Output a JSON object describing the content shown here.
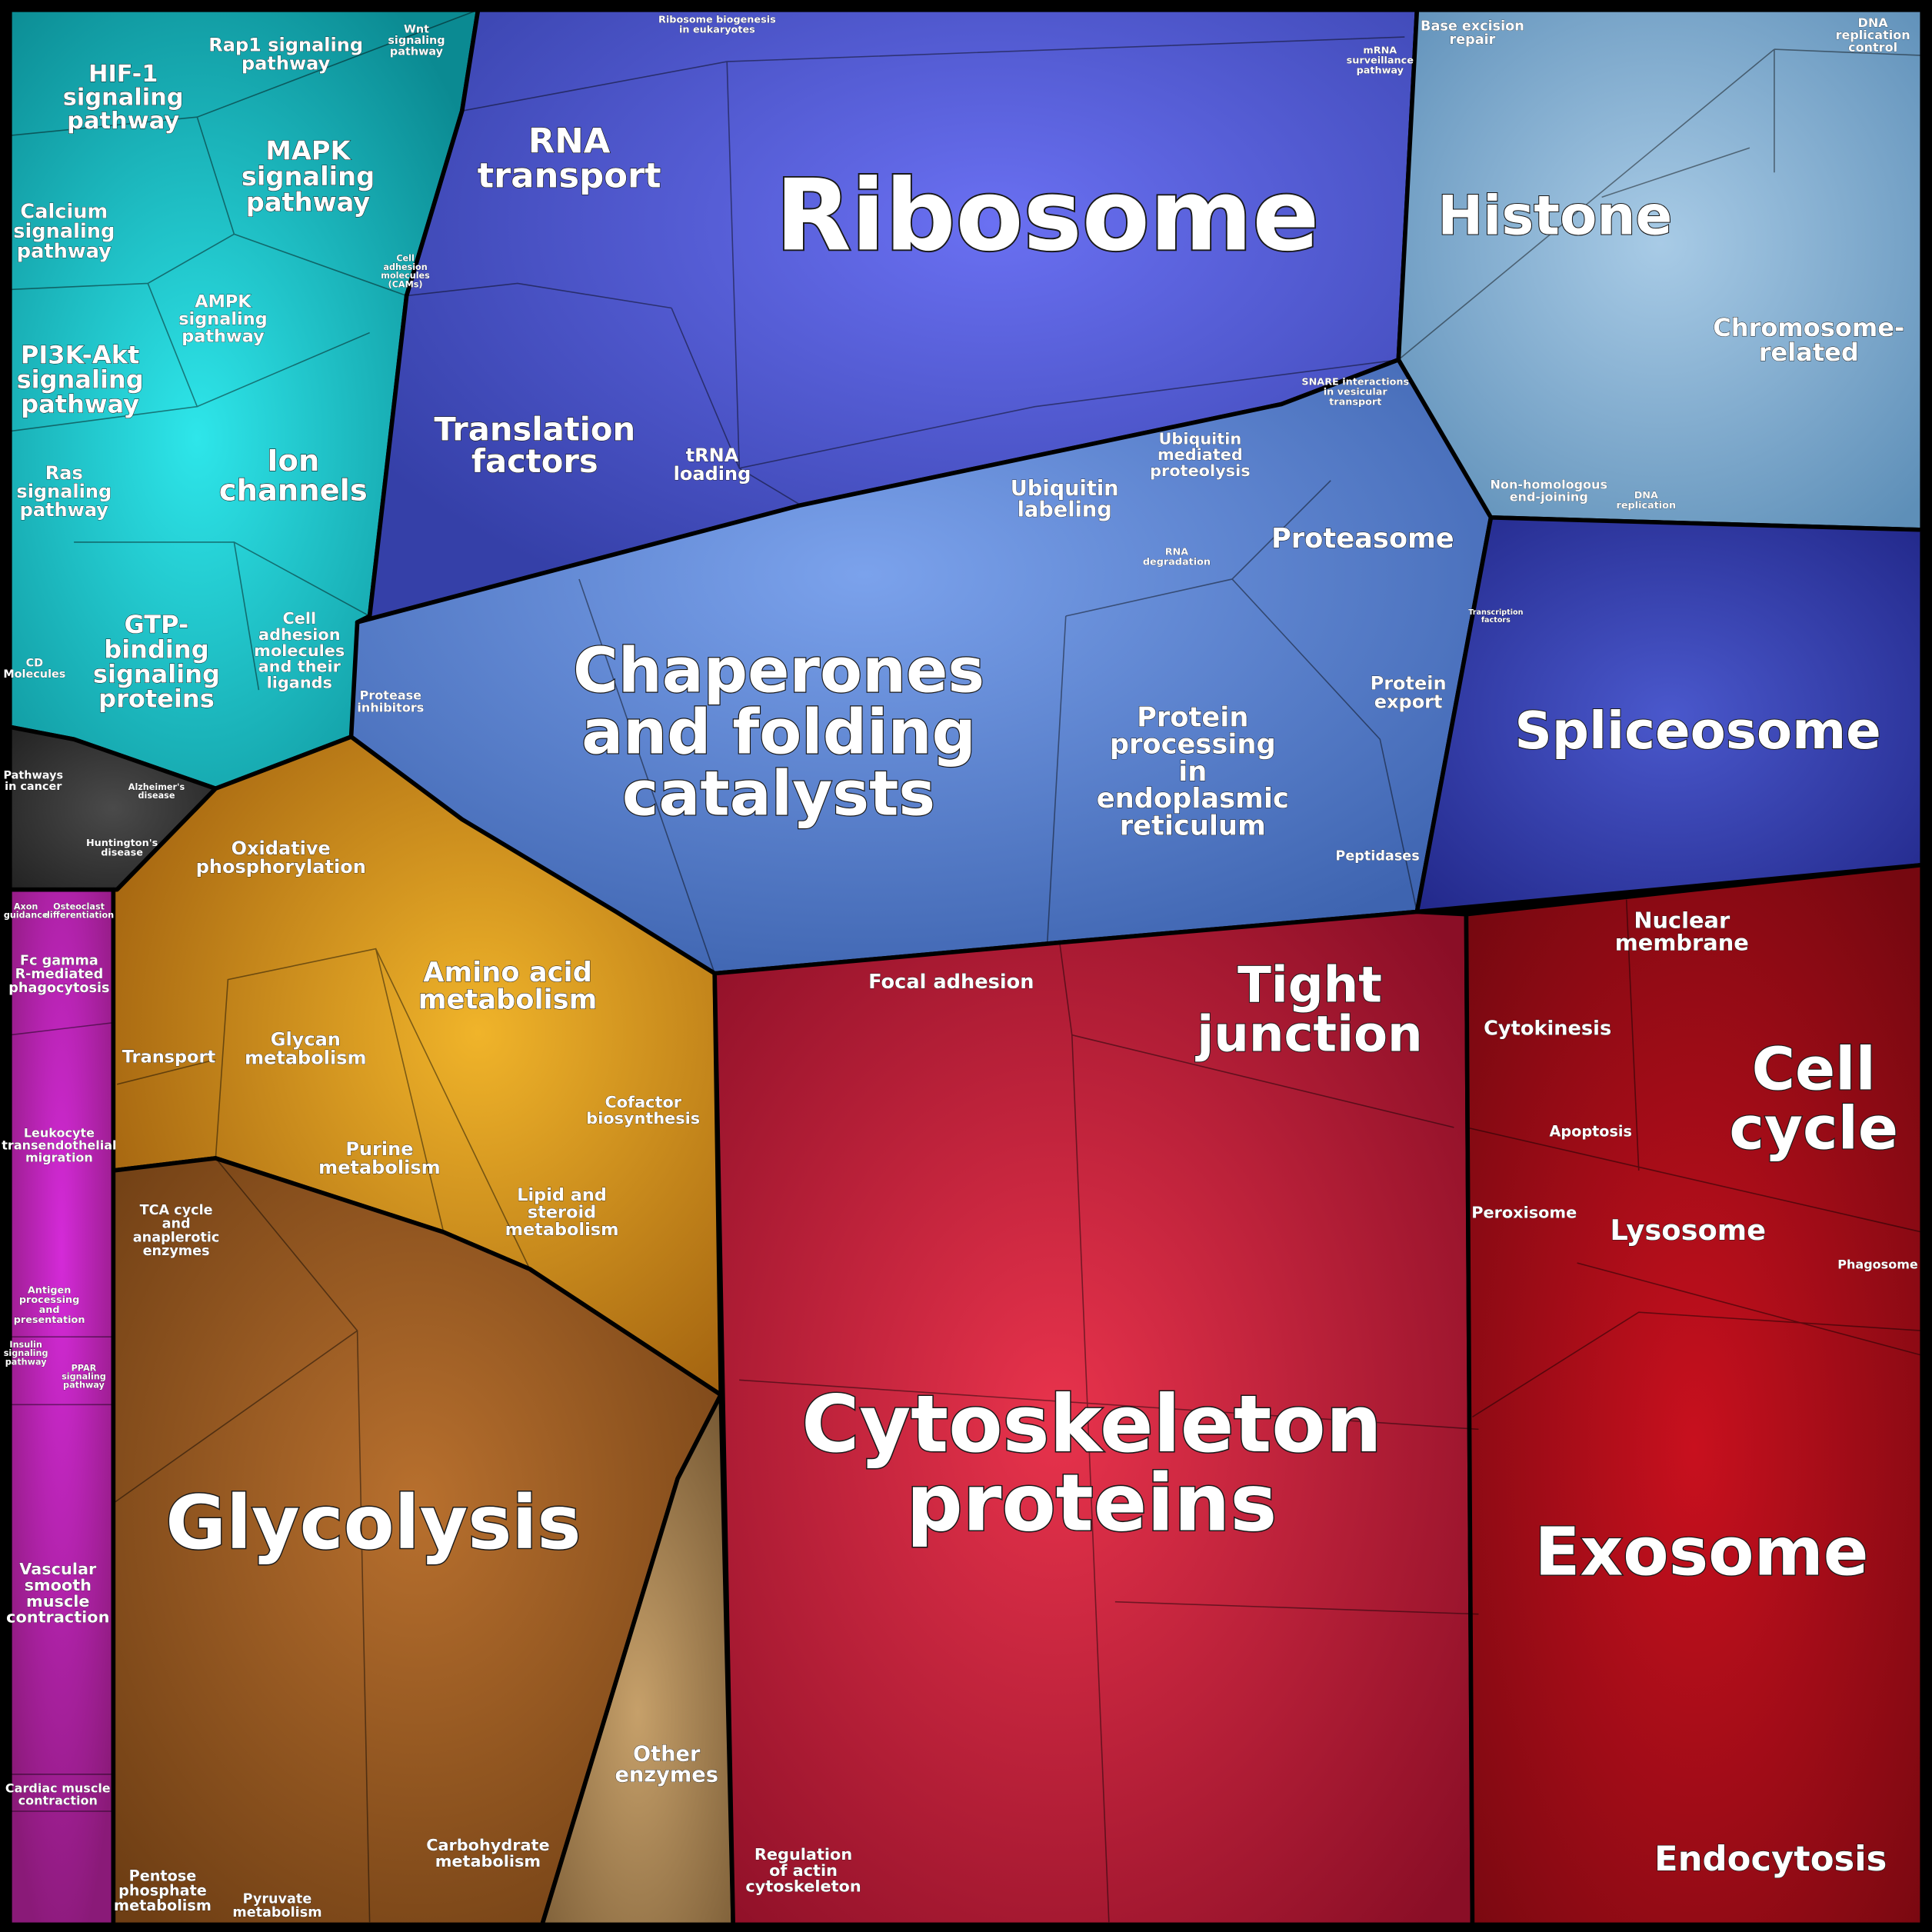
{
  "labels": [
    {
      "lines": [
        "Ribosome"
      ]
    },
    {
      "lines": [
        "Histone"
      ]
    },
    {
      "lines": [
        "Chromosome-",
        "related"
      ]
    },
    {
      "lines": [
        "RNA",
        "transport"
      ]
    },
    {
      "lines": [
        "Translation",
        "factors"
      ]
    },
    {
      "lines": [
        "tRNA",
        "loading"
      ]
    },
    {
      "lines": [
        "Chaperones",
        "and folding",
        "catalysts"
      ]
    },
    {
      "lines": [
        "Ubiquitin",
        "labeling"
      ]
    },
    {
      "lines": [
        "Ubiquitin",
        "mediated",
        "proteolysis"
      ]
    },
    {
      "lines": [
        "Proteasome"
      ]
    },
    {
      "lines": [
        "Protein",
        "processing",
        "in",
        "endoplasmic",
        "reticulum"
      ]
    },
    {
      "lines": [
        "Protein",
        "export"
      ]
    },
    {
      "lines": [
        "Peptidases"
      ]
    },
    {
      "lines": [
        "Protease",
        "inhibitors"
      ]
    },
    {
      "lines": [
        "Spliceosome"
      ]
    },
    {
      "lines": [
        "HIF-1",
        "signaling",
        "pathway"
      ]
    },
    {
      "lines": [
        "Rap1 signaling",
        "pathway"
      ]
    },
    {
      "lines": [
        "MAPK",
        "signaling",
        "pathway"
      ]
    },
    {
      "lines": [
        "Calcium",
        "signaling",
        "pathway"
      ]
    },
    {
      "lines": [
        "AMPK",
        "signaling",
        "pathway"
      ]
    },
    {
      "lines": [
        "PI3K-Akt",
        "signaling",
        "pathway"
      ]
    },
    {
      "lines": [
        "Ras",
        "signaling",
        "pathway"
      ]
    },
    {
      "lines": [
        "Ion",
        "channels"
      ]
    },
    {
      "lines": [
        "GTP-",
        "binding",
        "signaling",
        "proteins"
      ]
    },
    {
      "lines": [
        "Cell",
        "adhesion",
        "molecules",
        "and their",
        "ligands"
      ]
    },
    {
      "lines": [
        "Wnt",
        "signaling",
        "pathway"
      ]
    },
    {
      "lines": [
        "Oxidative",
        "phosphorylation"
      ]
    },
    {
      "lines": [
        "Amino acid",
        "metabolism"
      ]
    },
    {
      "lines": [
        "Glycan",
        "metabolism"
      ]
    },
    {
      "lines": [
        "Transport"
      ]
    },
    {
      "lines": [
        "Purine",
        "metabolism"
      ]
    },
    {
      "lines": [
        "Cofactor",
        "biosynthesis"
      ]
    },
    {
      "lines": [
        "Lipid and",
        "steroid",
        "metabolism"
      ]
    },
    {
      "lines": [
        "TCA cycle",
        "and",
        "anaplerotic",
        "enzymes"
      ]
    },
    {
      "lines": [
        "Glycolysis"
      ]
    },
    {
      "lines": [
        "Carbohydrate",
        "metabolism"
      ]
    },
    {
      "lines": [
        "Pentose",
        "phosphate",
        "metabolism"
      ]
    },
    {
      "lines": [
        "Pyruvate",
        "metabolism"
      ]
    },
    {
      "lines": [
        "Other",
        "enzymes"
      ]
    },
    {
      "lines": [
        "Pathways",
        "in cancer"
      ]
    },
    {
      "lines": [
        "Fc gamma",
        "R-mediated",
        "phagocytosis"
      ]
    },
    {
      "lines": [
        "Leukocyte",
        "transendothelial",
        "migration"
      ]
    },
    {
      "lines": [
        "Vascular",
        "smooth",
        "muscle",
        "contraction"
      ]
    },
    {
      "lines": [
        "Cardiac muscle",
        "contraction"
      ]
    },
    {
      "lines": [
        "Antigen",
        "processing",
        "and",
        "presentation"
      ]
    },
    {
      "lines": [
        "Focal adhesion"
      ]
    },
    {
      "lines": [
        "Tight",
        "junction"
      ]
    },
    {
      "lines": [
        "Nuclear",
        "membrane"
      ]
    },
    {
      "lines": [
        "Cytokinesis"
      ]
    },
    {
      "lines": [
        "Cell",
        "cycle"
      ]
    },
    {
      "lines": [
        "Apoptosis"
      ]
    },
    {
      "lines": [
        "Peroxisome"
      ]
    },
    {
      "lines": [
        "Lysosome"
      ]
    },
    {
      "lines": [
        "Phagosome"
      ]
    },
    {
      "lines": [
        "Cytoskeleton",
        "proteins"
      ]
    },
    {
      "lines": [
        "Exosome"
      ]
    },
    {
      "lines": [
        "Endocytosis"
      ]
    },
    {
      "lines": [
        "Regulation",
        "of actin",
        "cytoskeleton"
      ]
    },
    {
      "lines": [
        "Base excision",
        "repair"
      ]
    },
    {
      "lines": [
        "DNA",
        "replication",
        "control"
      ]
    },
    {
      "lines": [
        "Non-homologous",
        "end-joining"
      ]
    },
    {
      "lines": [
        "DNA",
        "replication"
      ]
    },
    {
      "lines": [
        "Axon",
        "guidance"
      ]
    },
    {
      "lines": [
        "Osteoclast",
        "differentiation"
      ]
    },
    {
      "lines": [
        "Insulin",
        "signaling",
        "pathway"
      ]
    },
    {
      "lines": [
        "PPAR",
        "signaling",
        "pathway"
      ]
    },
    {
      "lines": [
        "Ribosome biogenesis",
        "in eukaryotes"
      ]
    },
    {
      "lines": [
        "mRNA",
        "surveillance",
        "pathway"
      ]
    },
    {
      "lines": [
        "CD",
        "Molecules"
      ]
    },
    {
      "lines": [
        "SNARE interactions",
        "in vesicular",
        "transport"
      ]
    },
    {
      "lines": [
        "RNA",
        "degradation"
      ]
    },
    {
      "lines": [
        "Cell",
        "adhesion",
        "molecules",
        "(CAMs)"
      ]
    },
    {
      "lines": [
        "Huntington's",
        "disease"
      ]
    },
    {
      "lines": [
        "Alzheimer's",
        "disease"
      ]
    },
    {
      "lines": [
        "Transcription",
        "factors"
      ]
    }
  ]
}
